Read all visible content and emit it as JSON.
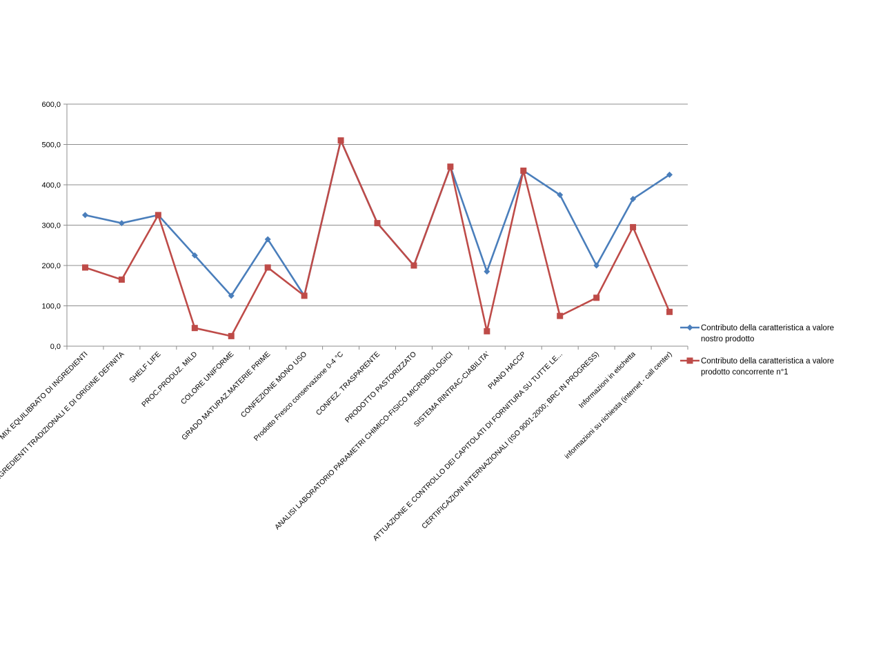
{
  "chart_data": {
    "type": "line",
    "title": "",
    "xlabel": "",
    "ylabel": "",
    "ylim": [
      0,
      600
    ],
    "yticks": [
      "0,0",
      "100,0",
      "200,0",
      "300,0",
      "400,0",
      "500,0",
      "600,0"
    ],
    "grid": true,
    "legend_position": "right",
    "categories": [
      "MIX EQUILIBRATO DI INGREDIENTI",
      "INGREDIENTI TRADIZIONALI E DI ORIGINE DEFINITA",
      "SHELF LIFE",
      "PROC.PRODUZ. MILD",
      "COLORE UNIFORME",
      "GRADO MATURAZ.MATERIE PRIME",
      "CONFEZIONE MONO USO",
      "Prodotto Fresco conservazione 0-4 °C",
      "CONFEZ. TRASPARENTE",
      "PRODOTTO PASTORIZZATO",
      "ANALISI LABORATORIO PARAMETRI CHIMICO-FISICO MICROBIOLOGICI",
      "SISTEMA RINTRAC-CIABILITA'",
      "PIANO HACCP",
      "ATTUAZIONE E CONTROLLO DEI CAPITOLATI DI FORNITURA SU TUTTE LE...",
      "CERTIFICAZIONI INTERNAZIONALI (ISO 9001-2000; BRC IN PROGRESS)",
      "Informazioni in etichetta",
      "informazioni su richiesta (internet - call center)"
    ],
    "series": [
      {
        "name": "Contributo della caratteristica a valore nostro prodotto",
        "color": "#4A7EBB",
        "marker": "diamond",
        "values": [
          325,
          305,
          325,
          225,
          125,
          265,
          125,
          510,
          305,
          200,
          445,
          185,
          435,
          375,
          200,
          365,
          425
        ]
      },
      {
        "name": "Contributo della caratteristica a valore prodotto concorrente n°1",
        "color": "#BE4B48",
        "marker": "square",
        "values": [
          195,
          165,
          325,
          45,
          25,
          195,
          125,
          510,
          305,
          200,
          445,
          37,
          435,
          75,
          120,
          295,
          85
        ]
      }
    ]
  },
  "legend": {
    "items": [
      {
        "line1": "Contributo della caratteristica a valore",
        "line2": "nostro prodotto"
      },
      {
        "line1": "Contributo della caratteristica a valore",
        "line2": "prodotto concorrente n°1"
      }
    ]
  }
}
